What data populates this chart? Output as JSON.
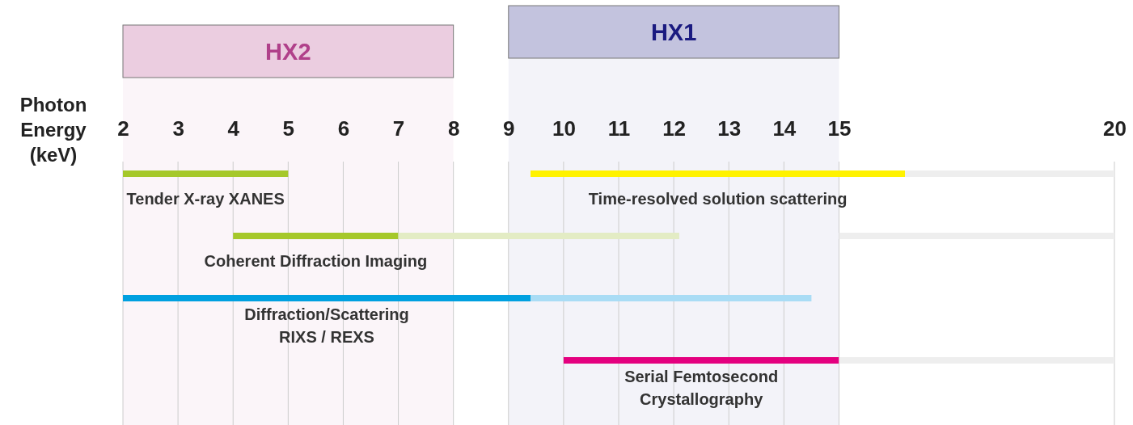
{
  "chart_data": {
    "type": "bar",
    "orientation": "horizontal",
    "xlabel": "Photon Energy (keV)",
    "xlim": [
      2,
      20
    ],
    "xticks": [
      2,
      3,
      4,
      5,
      6,
      7,
      8,
      9,
      10,
      11,
      12,
      13,
      14,
      15,
      20
    ],
    "grid": "x",
    "categories": [
      null,
      null,
      null,
      null
    ],
    "series": [
      {
        "base": [
          2,
          4,
          2,
          10
        ],
        "values": [
          3,
          3,
          7.4,
          5
        ],
        "colors": [
          "#a5c82a",
          "#a5c82a",
          "#00a0e0",
          "#e4007f"
        ]
      },
      {
        "base": [
          9.4,
          7,
          9.4,
          null
        ],
        "values": [
          6.8,
          5.1,
          5.1,
          null
        ],
        "colors": [
          "#fff200",
          "#e3ecc4",
          "#a9dcf5",
          null
        ]
      },
      {
        "base": [
          16.2,
          15,
          null,
          15
        ],
        "values": [
          3.8,
          5,
          null,
          5
        ],
        "color": "#eeeeee"
      }
    ],
    "annotations": [
      "Tender X-ray XANES",
      "Time-resolved solution scattering",
      "Coherent Diffraction Imaging",
      "Diffraction/Scattering\nRIXS / REXS",
      "Serial Femtosecond\nCrystallography"
    ],
    "bands": [
      {
        "axis": "x",
        "from": 2,
        "to": 8,
        "label": "HX2",
        "color": "#b0408a"
      },
      {
        "axis": "x",
        "from": 9,
        "to": 15,
        "label": "HX1",
        "color": "#1a1a80"
      }
    ]
  }
}
